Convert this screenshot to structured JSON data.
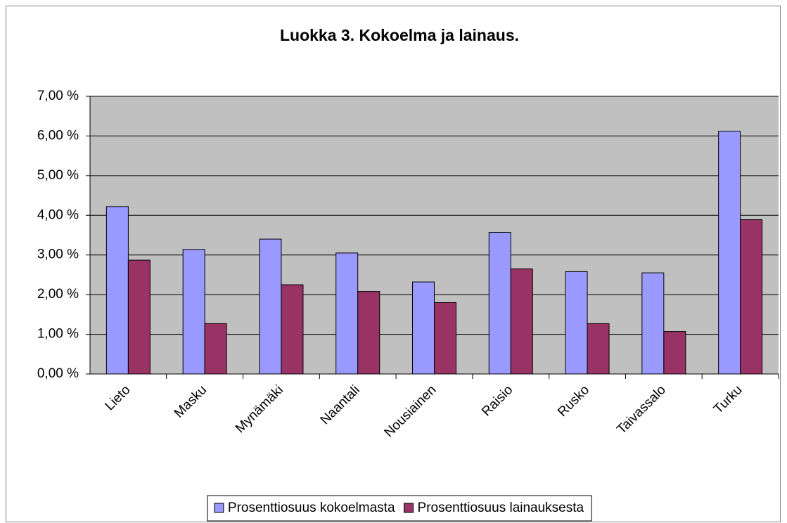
{
  "chart_data": {
    "type": "bar",
    "title": "Luokka 3. Kokoelma ja lainaus.",
    "categories": [
      "Lieto",
      "Masku",
      "Mynämäki",
      "Naantali",
      "Nousiainen",
      "Raisio",
      "Rusko",
      "Taivassalo",
      "Turku"
    ],
    "series": [
      {
        "name": "Prosenttiosuus kokoelmasta",
        "color": "#9999ff",
        "values": [
          4.22,
          3.14,
          3.4,
          3.05,
          2.32,
          3.57,
          2.58,
          2.55,
          6.12
        ]
      },
      {
        "name": "Prosenttiosuus lainauksesta",
        "color": "#993366",
        "values": [
          2.87,
          1.27,
          2.25,
          2.08,
          1.8,
          2.65,
          1.27,
          1.07,
          3.89
        ]
      }
    ],
    "ylim": [
      0,
      7
    ],
    "yticks": [
      {
        "value": 0,
        "label": "0,00 %"
      },
      {
        "value": 1,
        "label": "1,00 %"
      },
      {
        "value": 2,
        "label": "2,00 %"
      },
      {
        "value": 3,
        "label": "3,00 %"
      },
      {
        "value": 4,
        "label": "4,00 %"
      },
      {
        "value": 5,
        "label": "5,00 %"
      },
      {
        "value": 6,
        "label": "6,00 %"
      },
      {
        "value": 7,
        "label": "7,00 %"
      }
    ],
    "grid": true,
    "legend": "bottom"
  }
}
